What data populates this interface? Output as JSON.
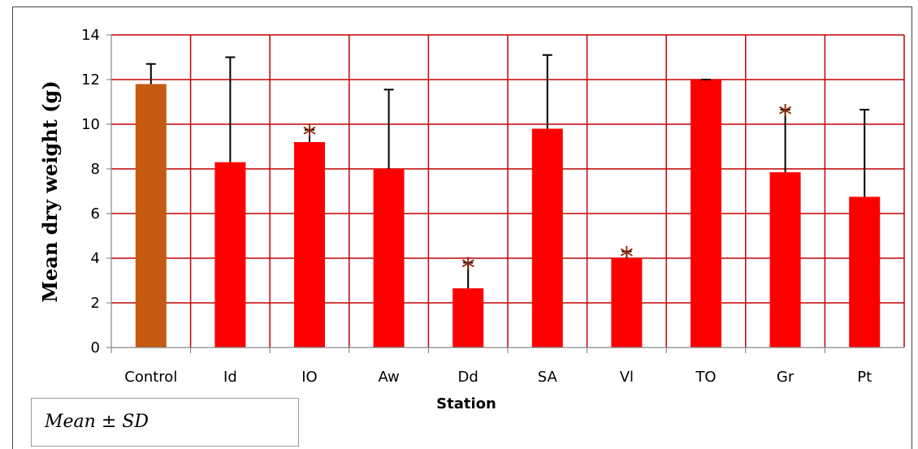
{
  "chart_data": {
    "type": "bar",
    "title": "",
    "xlabel": "Station",
    "ylabel": "Mean dry weight (g)",
    "ylim": [
      0,
      14
    ],
    "yticks": [
      0,
      2,
      4,
      6,
      8,
      10,
      12,
      14
    ],
    "categories": [
      "Control",
      "Id",
      "IO",
      "Aw",
      "Dd",
      "SA",
      "Vl",
      "TO",
      "Gr",
      "Pt"
    ],
    "values": [
      11.8,
      8.3,
      9.2,
      8.0,
      2.65,
      9.8,
      4.0,
      12.0,
      7.85,
      6.75
    ],
    "error_upper": [
      12.7,
      13.0,
      9.75,
      11.55,
      3.8,
      13.1,
      4.3,
      12.0,
      10.65,
      10.65
    ],
    "significant": [
      false,
      false,
      true,
      false,
      true,
      false,
      true,
      false,
      true,
      false
    ],
    "significance_marker": "*",
    "grid": true,
    "colors": {
      "control": "#c55a11",
      "bars": "#ff0000",
      "grid": "#c00000",
      "marker": "#8b2500",
      "error": "#000000"
    }
  },
  "legend": {
    "text": "Mean ± SD"
  }
}
